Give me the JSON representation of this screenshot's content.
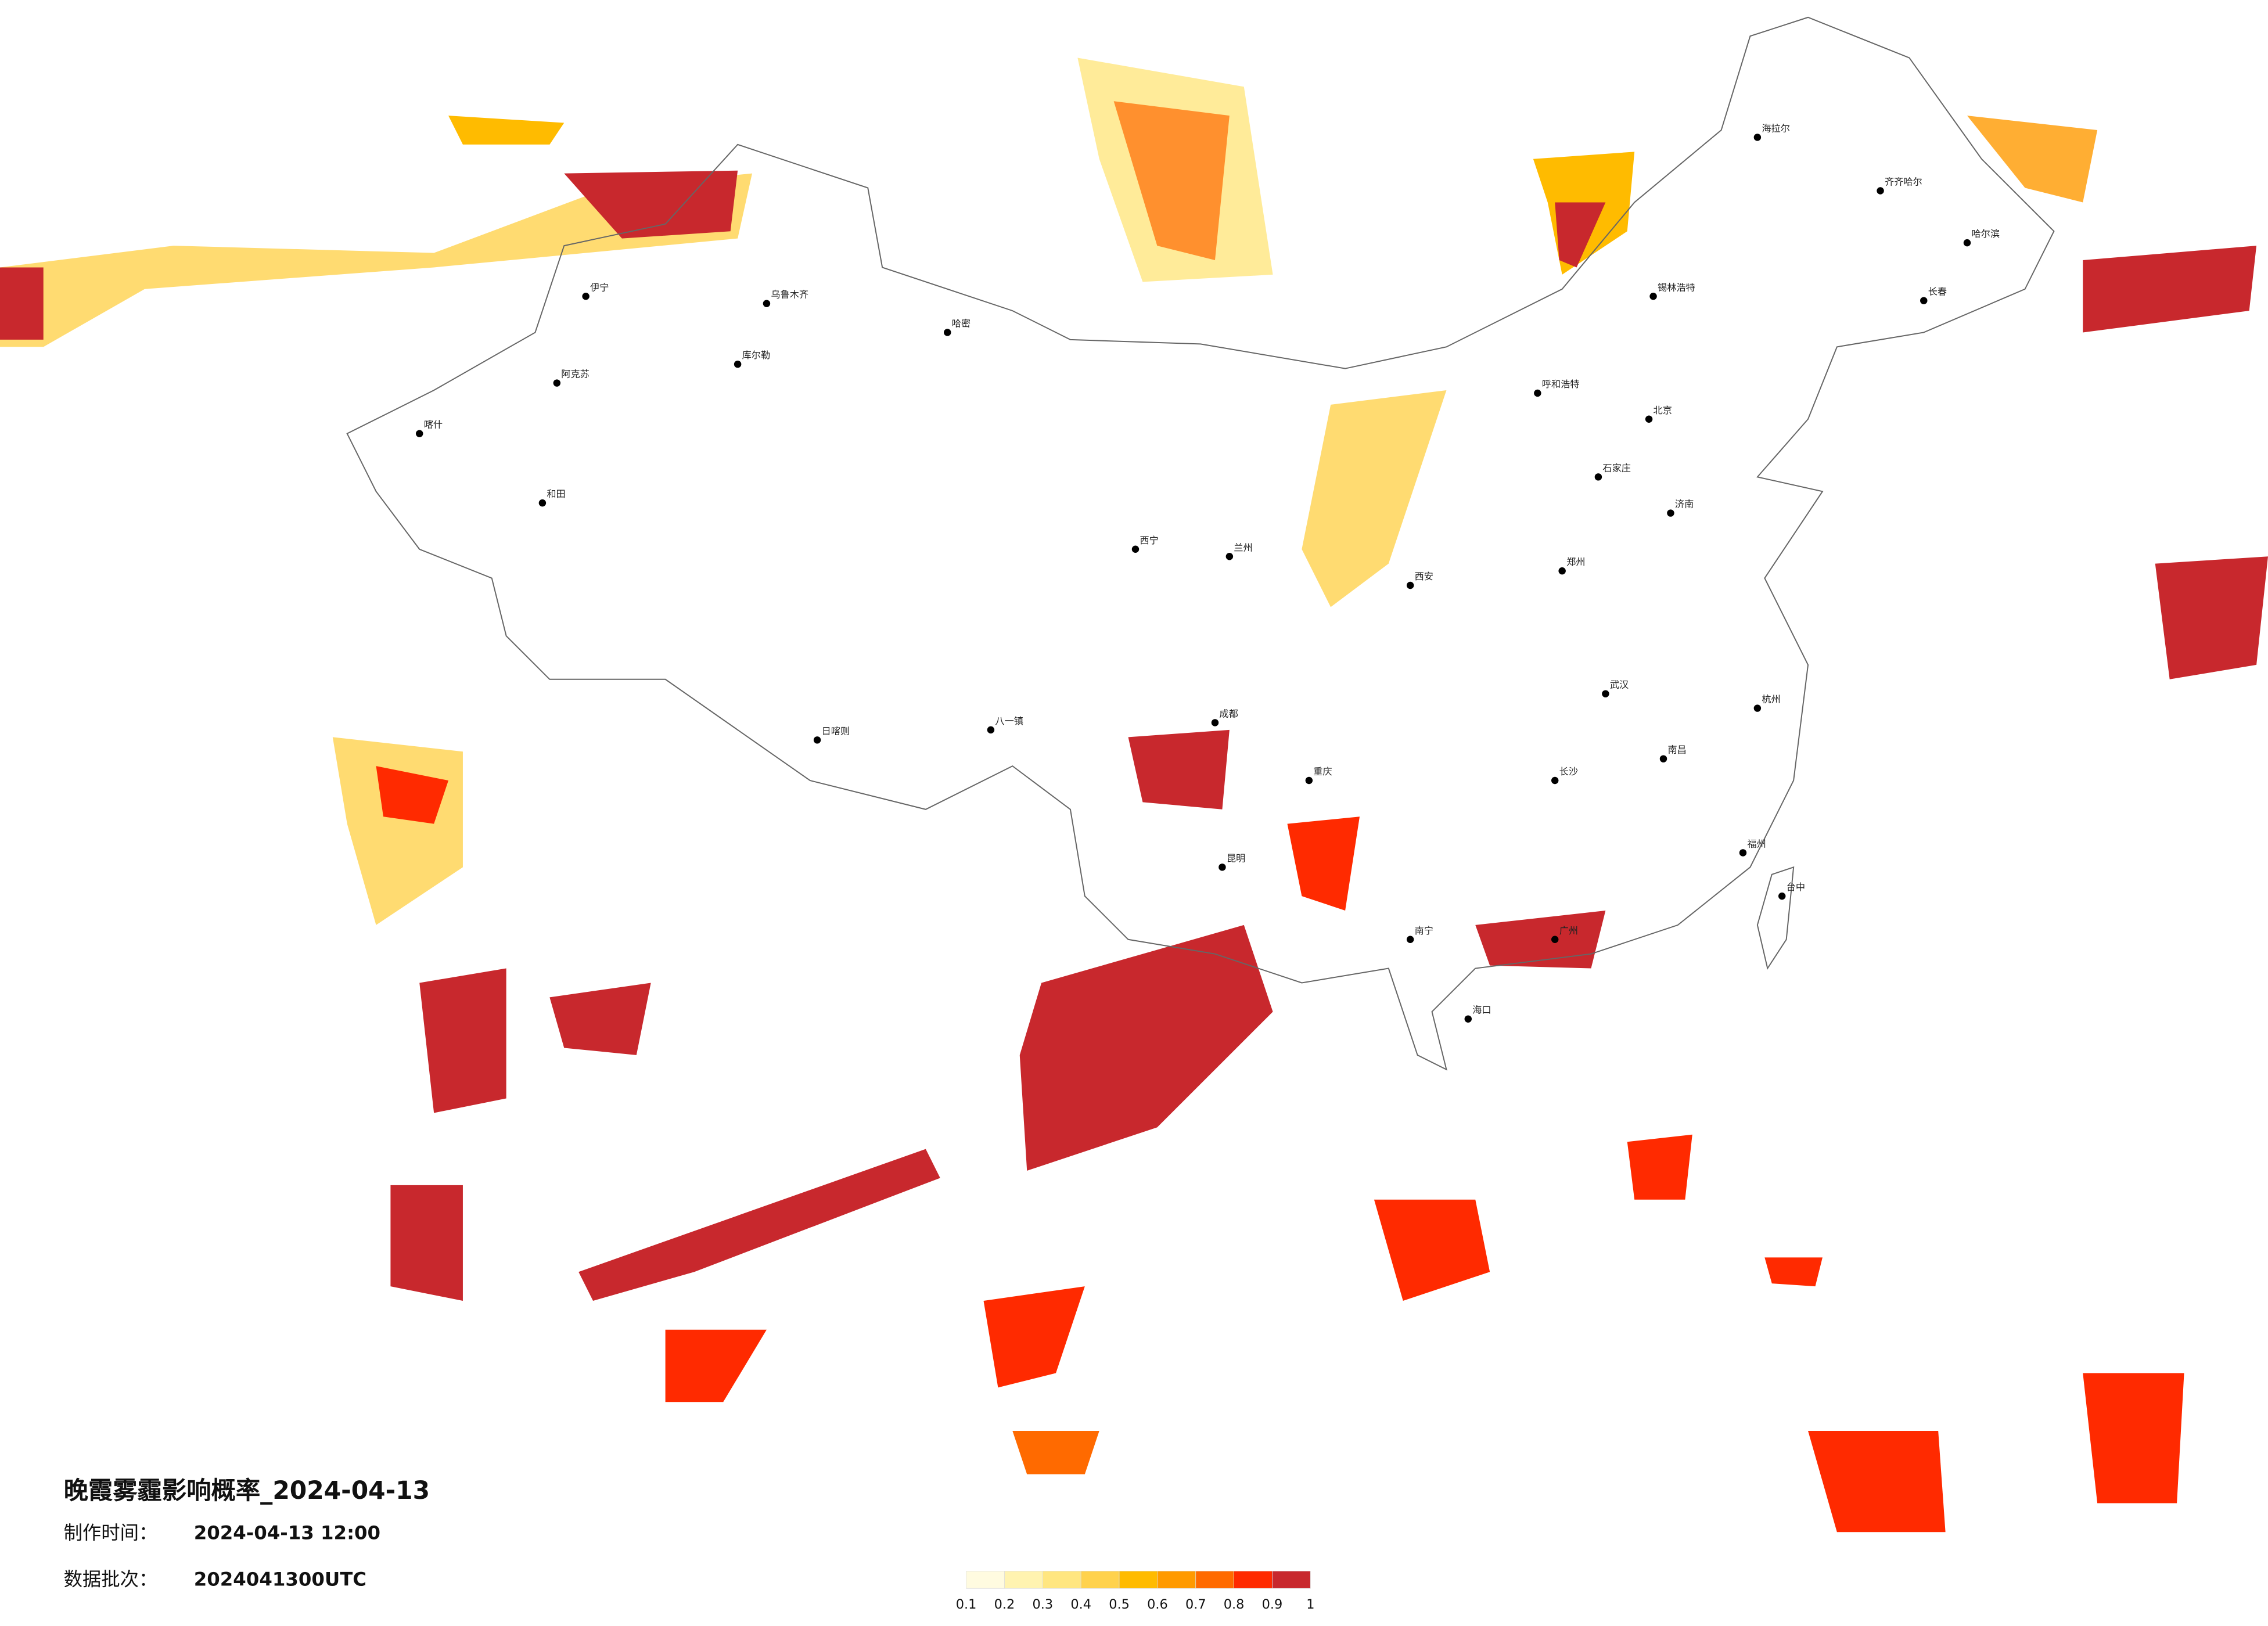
{
  "title": "晚霞雾霾影响概率_2024-04-13",
  "made": {
    "label": "制作时间：",
    "value": "2024-04-13 12:00"
  },
  "batch": {
    "label": "数据批次：",
    "value": "2024041300UTC"
  },
  "legend": {
    "colors": [
      "#fffbe0",
      "#fff3b0",
      "#ffe680",
      "#ffd24d",
      "#ffbb00",
      "#ff9a00",
      "#ff6a00",
      "#ff2a00",
      "#c8282d"
    ],
    "ticks": [
      0.1,
      0.2,
      0.3,
      0.4,
      0.5,
      0.6,
      0.7,
      0.8,
      0.9,
      1
    ]
  },
  "cities": [
    {
      "name": "海拉尔"
    },
    {
      "name": "齐齐哈尔"
    },
    {
      "name": "哈尔滨"
    },
    {
      "name": "长春"
    },
    {
      "name": "锡林浩特"
    },
    {
      "name": "呼和浩特"
    },
    {
      "name": "北京"
    },
    {
      "name": "石家庄"
    },
    {
      "name": "济南"
    },
    {
      "name": "郑州"
    },
    {
      "name": "西安"
    },
    {
      "name": "兰州"
    },
    {
      "name": "西宁"
    },
    {
      "name": "成都"
    },
    {
      "name": "重庆"
    },
    {
      "name": "武汉"
    },
    {
      "name": "长沙"
    },
    {
      "name": "南昌"
    },
    {
      "name": "杭州"
    },
    {
      "name": "福州"
    },
    {
      "name": "广州"
    },
    {
      "name": "南宁"
    },
    {
      "name": "海口"
    },
    {
      "name": "昆明"
    },
    {
      "name": "乌鲁木齐"
    },
    {
      "name": "喀什"
    },
    {
      "name": "和田"
    },
    {
      "name": "阿克苏"
    },
    {
      "name": "哈密"
    },
    {
      "name": "库尔勒"
    },
    {
      "name": "伊宁"
    },
    {
      "name": "日喀则"
    },
    {
      "name": "八一镇"
    },
    {
      "name": "台中"
    }
  ]
}
